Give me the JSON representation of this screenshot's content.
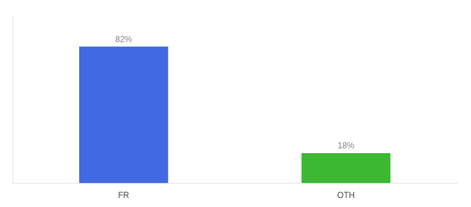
{
  "chart_data": {
    "type": "bar",
    "categories": [
      "FR",
      "OTH"
    ],
    "values": [
      82,
      18
    ],
    "value_labels": [
      "82%",
      "18%"
    ],
    "colors": [
      "#4169e1",
      "#3cb832"
    ],
    "ylim": [
      0,
      100
    ],
    "grid": false,
    "data_labels": true,
    "tick_labels": "x"
  }
}
